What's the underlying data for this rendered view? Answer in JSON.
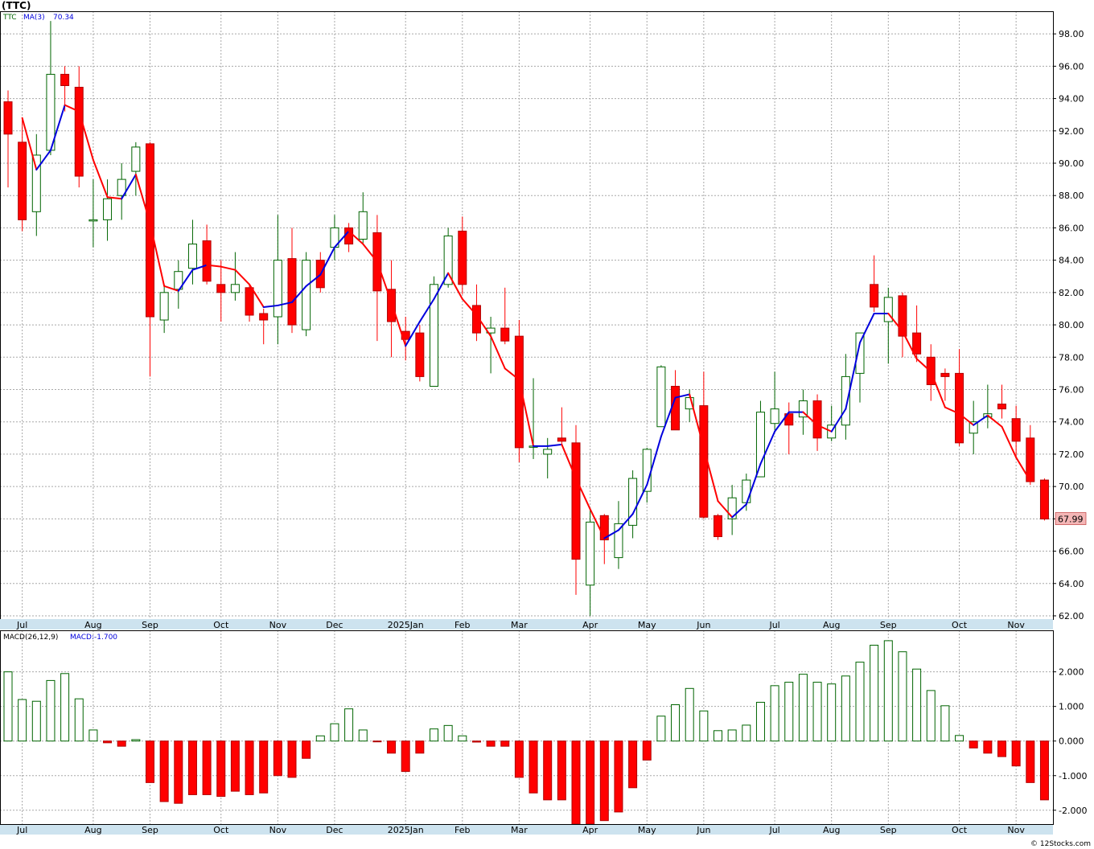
{
  "ticker_title": "(TTC)",
  "price_legend": {
    "symbol": "TTC",
    "ma_label": "MA(3)",
    "ma_value": "70.34"
  },
  "macd_legend": {
    "name": "MACD(26,12,9)",
    "value_label": "MACD:-1.700"
  },
  "last_price_tag": "67.99",
  "watermark": "© 12Stocks.com",
  "colors": {
    "up": "#006400",
    "down": "#ff0000",
    "ma_up": "#0000dd",
    "ma_down": "#ff0000",
    "axis_band": "#cde3ef",
    "price_tag_bg": "#f4b6b6"
  },
  "chart_data": [
    {
      "type": "candlestick",
      "title": "(TTC)",
      "period": "weekly",
      "x_axis_labels": [
        "Jul",
        "Aug",
        "Sep",
        "Oct",
        "Nov",
        "Dec",
        "2025Jan",
        "Feb",
        "Mar",
        "Apr",
        "May",
        "Jun",
        "Jul",
        "Aug",
        "Sep",
        "Oct",
        "Nov"
      ],
      "x_label_week_index": [
        1,
        6,
        10,
        15,
        19,
        23,
        28,
        32,
        36,
        41,
        45,
        49,
        54,
        58,
        62,
        67,
        71
      ],
      "y_ticks": [
        "62.00",
        "64.00",
        "66.00",
        "68.00",
        "70.00",
        "72.00",
        "74.00",
        "76.00",
        "78.00",
        "80.00",
        "82.00",
        "84.00",
        "86.00",
        "88.00",
        "90.00",
        "92.00",
        "94.00",
        "96.00",
        "98.00"
      ],
      "ylim": [
        61.8,
        99.4
      ],
      "ohlc": [
        [
          93.8,
          94.5,
          88.5,
          91.8
        ],
        [
          91.3,
          92.8,
          85.8,
          86.5
        ],
        [
          87.0,
          91.8,
          85.5,
          90.5
        ],
        [
          90.8,
          98.8,
          90.5,
          95.5
        ],
        [
          95.5,
          96.0,
          93.2,
          94.8
        ],
        [
          94.7,
          96.0,
          88.5,
          89.2
        ],
        [
          86.5,
          89.0,
          84.8,
          86.5
        ],
        [
          86.5,
          89.0,
          85.2,
          87.8
        ],
        [
          88.0,
          90.0,
          86.5,
          89.0
        ],
        [
          89.5,
          91.3,
          88.0,
          91.0
        ],
        [
          91.2,
          91.3,
          76.8,
          80.5
        ],
        [
          80.3,
          82.5,
          79.5,
          82.0
        ],
        [
          82.2,
          84.0,
          81.0,
          83.3
        ],
        [
          83.5,
          86.5,
          82.5,
          85.0
        ],
        [
          85.2,
          86.2,
          82.5,
          82.7
        ],
        [
          82.5,
          84.0,
          80.2,
          82.0
        ],
        [
          82.0,
          84.5,
          81.5,
          82.5
        ],
        [
          82.3,
          82.5,
          80.2,
          80.6
        ],
        [
          80.7,
          81.0,
          78.8,
          80.3
        ],
        [
          80.5,
          86.8,
          78.8,
          84.0
        ],
        [
          84.1,
          86.0,
          79.5,
          80.0
        ],
        [
          79.7,
          84.5,
          79.3,
          84.0
        ],
        [
          84.0,
          84.5,
          82.0,
          82.3
        ],
        [
          84.8,
          86.8,
          84.0,
          86.0
        ],
        [
          86.0,
          86.3,
          84.5,
          85.0
        ],
        [
          85.3,
          88.2,
          85.0,
          87.0
        ],
        [
          85.7,
          86.8,
          79.0,
          82.1
        ],
        [
          82.2,
          84.0,
          78.0,
          80.2
        ],
        [
          79.6,
          80.5,
          77.8,
          79.1
        ],
        [
          79.5,
          80.0,
          76.5,
          76.8
        ],
        [
          76.2,
          83.0,
          76.2,
          82.5
        ],
        [
          82.5,
          86.0,
          82.3,
          85.5
        ],
        [
          85.8,
          86.7,
          81.9,
          82.5
        ],
        [
          81.2,
          82.5,
          79.0,
          79.5
        ],
        [
          79.5,
          80.5,
          77.0,
          79.8
        ],
        [
          79.8,
          82.3,
          78.8,
          79.0
        ],
        [
          79.3,
          80.3,
          71.5,
          72.4
        ],
        [
          72.5,
          76.7,
          71.7,
          72.5
        ],
        [
          72.0,
          73.0,
          70.5,
          72.3
        ],
        [
          73.0,
          74.9,
          72.6,
          72.8
        ],
        [
          72.7,
          73.8,
          63.3,
          65.5
        ],
        [
          63.9,
          68.6,
          62.0,
          67.8
        ],
        [
          68.2,
          68.3,
          65.2,
          66.7
        ],
        [
          65.6,
          69.1,
          64.9,
          67.7
        ],
        [
          67.6,
          71.0,
          66.8,
          70.5
        ],
        [
          69.7,
          72.4,
          69.0,
          72.3
        ],
        [
          73.7,
          77.5,
          73.7,
          77.4
        ],
        [
          76.2,
          77.2,
          73.5,
          73.5
        ],
        [
          74.8,
          76.0,
          74.0,
          75.5
        ],
        [
          75.0,
          77.1,
          68.0,
          68.1
        ],
        [
          68.2,
          68.3,
          66.7,
          66.9
        ],
        [
          68.0,
          70.1,
          67.0,
          69.3
        ],
        [
          69.0,
          70.8,
          68.5,
          70.4
        ],
        [
          70.6,
          75.3,
          70.6,
          74.6
        ],
        [
          73.9,
          77.1,
          73.5,
          74.8
        ],
        [
          74.5,
          75.2,
          72.0,
          73.8
        ],
        [
          74.3,
          76.0,
          73.2,
          75.3
        ],
        [
          75.3,
          75.7,
          72.2,
          73.0
        ],
        [
          73.0,
          75.0,
          72.8,
          73.8
        ],
        [
          73.8,
          78.2,
          72.9,
          76.8
        ],
        [
          77.0,
          79.5,
          75.2,
          79.5
        ],
        [
          82.5,
          84.3,
          80.8,
          81.1
        ],
        [
          80.2,
          82.3,
          77.6,
          81.7
        ],
        [
          81.8,
          82.0,
          78.0,
          79.3
        ],
        [
          79.5,
          81.2,
          77.7,
          78.2
        ],
        [
          78.0,
          78.8,
          75.3,
          76.3
        ],
        [
          77.0,
          77.3,
          75.3,
          76.8
        ],
        [
          77.0,
          78.5,
          72.5,
          72.7
        ],
        [
          73.3,
          75.3,
          72.0,
          74.0
        ],
        [
          74.3,
          76.3,
          73.6,
          74.5
        ],
        [
          75.1,
          76.3,
          74.2,
          74.8
        ],
        [
          74.2,
          75.0,
          71.8,
          72.8
        ],
        [
          73.0,
          73.8,
          70.1,
          70.3
        ],
        [
          70.4,
          70.5,
          67.9,
          67.99
        ]
      ],
      "ma3_period": 3,
      "ma3_series": {
        "name": "MA(3)",
        "start_index": 1,
        "values": [
          92.8,
          89.6,
          90.8,
          93.6,
          93.2,
          90.2,
          87.9,
          87.8,
          89.3,
          86.3,
          82.4,
          82.1,
          83.4,
          83.7,
          83.6,
          83.4,
          82.5,
          81.1,
          81.2,
          81.4,
          82.4,
          83.1,
          84.8,
          85.8,
          85.0,
          83.9,
          81.4,
          78.7,
          80.2,
          81.6,
          83.2,
          81.6,
          80.6,
          79.3,
          77.3,
          76.6,
          72.5,
          72.5,
          72.6,
          70.5,
          68.6,
          66.8,
          67.3,
          68.3,
          70.1,
          73.1,
          75.5,
          75.7,
          72.4,
          69.1,
          68.1,
          68.9,
          71.4,
          73.4,
          74.6,
          74.6,
          73.8,
          73.4,
          74.8,
          78.9,
          80.7,
          80.7,
          79.6,
          77.9,
          77.1,
          74.9,
          74.5,
          73.8,
          74.4,
          73.7,
          71.8,
          70.34
        ]
      }
    },
    {
      "type": "bar",
      "title": "MACD(26,12,9)",
      "x_axis_labels": [
        "Jul",
        "Aug",
        "Sep",
        "Oct",
        "Nov",
        "Dec",
        "2025Jan",
        "Feb",
        "Mar",
        "Apr",
        "May",
        "Jun",
        "Jul",
        "Aug",
        "Sep",
        "Oct",
        "Nov"
      ],
      "y_ticks": [
        "-2.000",
        "-1.000",
        "0.000",
        "1.000",
        "2.000"
      ],
      "ylim": [
        -2.4,
        3.2
      ],
      "values": [
        2.0,
        1.2,
        1.15,
        1.75,
        1.95,
        1.22,
        0.32,
        -0.05,
        -0.15,
        0.04,
        -1.2,
        -1.75,
        -1.8,
        -1.55,
        -1.55,
        -1.6,
        -1.45,
        -1.55,
        -1.5,
        -1.0,
        -1.05,
        -0.5,
        0.15,
        0.5,
        0.93,
        0.32,
        -0.02,
        -0.35,
        -0.88,
        -0.35,
        0.35,
        0.45,
        0.15,
        -0.03,
        -0.15,
        -0.15,
        -1.05,
        -1.5,
        -1.7,
        -1.7,
        -2.4,
        -2.4,
        -2.3,
        -2.05,
        -1.35,
        -0.55,
        0.72,
        1.05,
        1.52,
        0.87,
        0.3,
        0.32,
        0.46,
        1.12,
        1.6,
        1.7,
        1.93,
        1.7,
        1.65,
        1.88,
        2.28,
        2.77,
        2.9,
        2.58,
        2.08,
        1.46,
        1.02,
        0.16,
        -0.2,
        -0.35,
        -0.45,
        -0.72,
        -1.2,
        -1.7
      ]
    }
  ]
}
